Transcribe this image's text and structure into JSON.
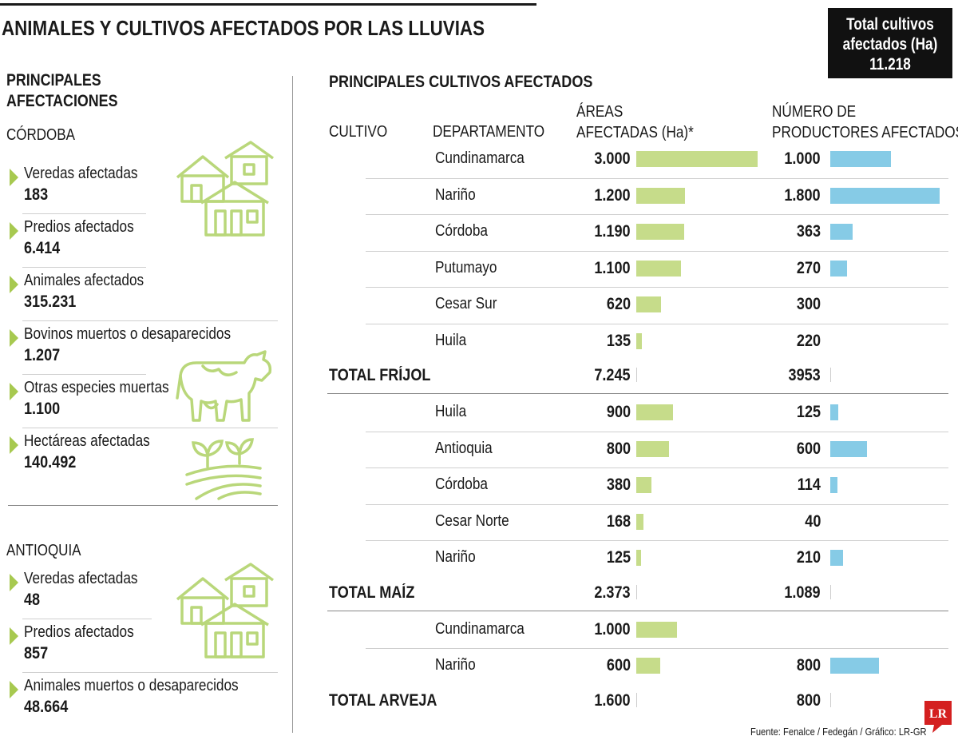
{
  "title": "ANIMALES Y CULTIVOS AFECTADOS POR LAS LLUVIAS",
  "total_box": {
    "line1": "Total cultivos",
    "line2": "afectados (Ha)",
    "value": "11.218"
  },
  "left": {
    "heading_line1": "PRINCIPALES",
    "heading_line2": "AFECTACIONES",
    "cordoba": {
      "name": "CÓRDOBA",
      "stats": [
        {
          "label": "Veredas afectadas",
          "value": "183"
        },
        {
          "label": "Predios afectados",
          "value": "6.414"
        },
        {
          "label": "Animales afectados",
          "value": "315.231"
        },
        {
          "label": "Bovinos muertos o desaparecidos",
          "value": "1.207"
        },
        {
          "label": "Otras especies muertas",
          "value": "1.100"
        },
        {
          "label": "Hectáreas afectadas",
          "value": "140.492"
        }
      ]
    },
    "antioquia": {
      "name": "ANTIOQUIA",
      "stats": [
        {
          "label": "Veredas afectadas",
          "value": "48"
        },
        {
          "label": "Predios afectados",
          "value": "857"
        },
        {
          "label": "Animales muertos o desaparecidos",
          "value": "48.664"
        }
      ]
    }
  },
  "table": {
    "heading": "PRINCIPALES CULTIVOS AFECTADOS",
    "col_cultivo": "CULTIVO",
    "col_departamento": "DEPARTAMENTO",
    "col_areas_line1": "ÁREAS",
    "col_areas_line2": "AFECTADAS (Ha)*",
    "col_prod_line1": "NÚMERO DE",
    "col_prod_line2": "PRODUCTORES AFECTADOS"
  },
  "chart_data": {
    "type": "table",
    "groups": [
      {
        "total_label": "TOTAL FRÍJOL",
        "total_area": "7.245",
        "total_producers": "3953",
        "rows": [
          {
            "dept": "Cundinamarca",
            "area": "3.000",
            "area_value": 3000,
            "producers": "1.000",
            "producers_value": 1000,
            "producers_bar": true
          },
          {
            "dept": "Nariño",
            "area": "1.200",
            "area_value": 1200,
            "producers": "1.800",
            "producers_value": 1800,
            "producers_bar": true
          },
          {
            "dept": "Córdoba",
            "area": "1.190",
            "area_value": 1190,
            "producers": "363",
            "producers_value": 363,
            "producers_bar": true
          },
          {
            "dept": "Putumayo",
            "area": "1.100",
            "area_value": 1100,
            "producers": "270",
            "producers_value": 270,
            "producers_bar": true
          },
          {
            "dept": "Cesar Sur",
            "area": "620",
            "area_value": 620,
            "producers": "300",
            "producers_value": 300,
            "producers_bar": false
          },
          {
            "dept": "Huila",
            "area": "135",
            "area_value": 135,
            "producers": "220",
            "producers_value": 220,
            "producers_bar": false
          }
        ]
      },
      {
        "total_label": "TOTAL MAÍZ",
        "total_area": "2.373",
        "total_producers": "1.089",
        "rows": [
          {
            "dept": "Huila",
            "area": "900",
            "area_value": 900,
            "producers": "125",
            "producers_value": 125,
            "producers_bar": true
          },
          {
            "dept": "Antioquia",
            "area": "800",
            "area_value": 800,
            "producers": "600",
            "producers_value": 600,
            "producers_bar": true
          },
          {
            "dept": "Córdoba",
            "area": "380",
            "area_value": 380,
            "producers": "114",
            "producers_value": 114,
            "producers_bar": true
          },
          {
            "dept": "Cesar Norte",
            "area": "168",
            "area_value": 168,
            "producers": "40",
            "producers_value": 40,
            "producers_bar": false
          },
          {
            "dept": "Nariño",
            "area": "125",
            "area_value": 125,
            "producers": "210",
            "producers_value": 210,
            "producers_bar": true
          }
        ]
      },
      {
        "total_label": "TOTAL ARVEJA",
        "total_area": "1.600",
        "total_producers": "800",
        "rows": [
          {
            "dept": "Cundinamarca",
            "area": "1.000",
            "area_value": 1000,
            "producers": "",
            "producers_value": null,
            "producers_bar": false
          },
          {
            "dept": "Nariño",
            "area": "600",
            "area_value": 600,
            "producers": "800",
            "producers_value": 800,
            "producers_bar": true
          }
        ]
      }
    ],
    "area_max": 3000,
    "producers_max": 1800,
    "colors": {
      "area_bar": "#c6dc8a",
      "producers_bar": "#86cbe6",
      "accent_green": "#a7c950"
    }
  },
  "source": "Fuente: Fenalce / Fedegán / Gráfico: LR-GR",
  "logo_text": "LR",
  "icons": [
    "houses-icon",
    "cow-icon",
    "crops-icon"
  ]
}
